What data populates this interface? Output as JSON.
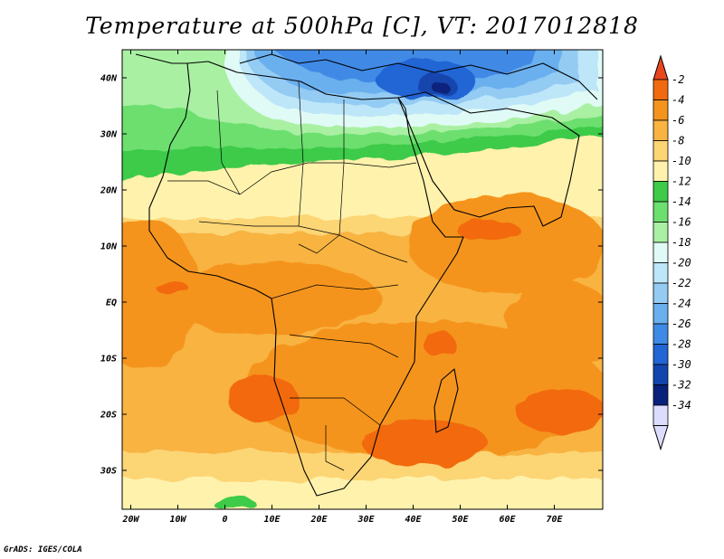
{
  "title": "Temperature at 500hPa [C], VT: 2017012818",
  "credit": "GrADS: IGES/COLA",
  "lat_labels": [
    {
      "lat": 40,
      "text": "40N"
    },
    {
      "lat": 30,
      "text": "30N"
    },
    {
      "lat": 20,
      "text": "20N"
    },
    {
      "lat": 10,
      "text": "10N"
    },
    {
      "lat": 0,
      "text": "EQ"
    },
    {
      "lat": -10,
      "text": "10S"
    },
    {
      "lat": -20,
      "text": "20S"
    },
    {
      "lat": -30,
      "text": "30S"
    }
  ],
  "lon_labels": [
    {
      "lon": -20,
      "text": "20W"
    },
    {
      "lon": -10,
      "text": "10W"
    },
    {
      "lon": 0,
      "text": "0"
    },
    {
      "lon": 10,
      "text": "10E"
    },
    {
      "lon": 20,
      "text": "20E"
    },
    {
      "lon": 30,
      "text": "30E"
    },
    {
      "lon": 40,
      "text": "40E"
    },
    {
      "lon": 50,
      "text": "50E"
    },
    {
      "lon": 60,
      "text": "60E"
    },
    {
      "lon": 70,
      "text": "70E"
    }
  ],
  "colorbar": {
    "top_color": "#e8461e",
    "bottom_color": "#dcdcff",
    "bins": [
      {
        "label": "-2",
        "color": "#f26a0f"
      },
      {
        "label": "-4",
        "color": "#f5941d"
      },
      {
        "label": "-6",
        "color": "#f8b341"
      },
      {
        "label": "-8",
        "color": "#fcd575"
      },
      {
        "label": "-10",
        "color": "#fff2ac"
      },
      {
        "label": "-12",
        "color": "#3ecb4a"
      },
      {
        "label": "-14",
        "color": "#6cdf6e"
      },
      {
        "label": "-16",
        "color": "#a9f0a3"
      },
      {
        "label": "-18",
        "color": "#e0fbf6"
      },
      {
        "label": "-20",
        "color": "#bde6f8"
      },
      {
        "label": "-22",
        "color": "#93cbf3"
      },
      {
        "label": "-24",
        "color": "#6aafee"
      },
      {
        "label": "-26",
        "color": "#3f8ae6"
      },
      {
        "label": "-28",
        "color": "#2265d4"
      },
      {
        "label": "-30",
        "color": "#1245ad"
      },
      {
        "label": "-32",
        "color": "#08217a"
      },
      {
        "label": "-34",
        "color": "#dcdcff"
      }
    ]
  }
}
